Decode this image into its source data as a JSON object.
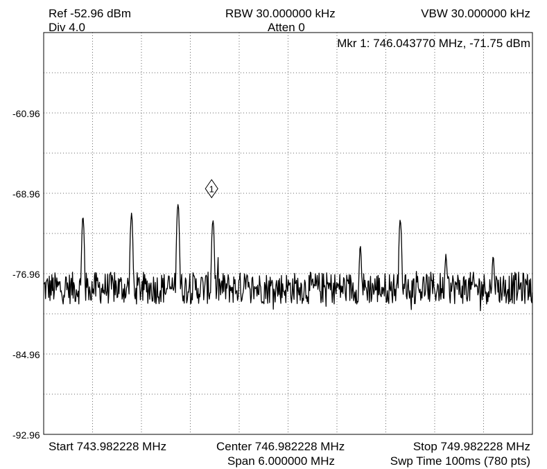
{
  "header": {
    "ref": "Ref -52.96 dBm",
    "div": "Div 4.0",
    "rbw": "RBW 30.000000 kHz",
    "atten": "Atten 0",
    "vbw": "VBW 30.000000 kHz",
    "marker_readout": "Mkr 1: 746.043770 MHz, -71.75 dBm"
  },
  "footer": {
    "start": "Start 743.982228 MHz",
    "center": "Center 746.982228 MHz",
    "stop": "Stop 749.982228 MHz",
    "span": "Span 6.000000 MHz",
    "sweep": "Swp Time 100ms (780 pts)"
  },
  "chart_data": {
    "type": "line",
    "title": "",
    "xlabel": "",
    "ylabel": "",
    "x_unit": "MHz",
    "y_unit": "dBm",
    "xlim": [
      743.982228,
      749.982228
    ],
    "ylim": [
      -92.96,
      -52.96
    ],
    "grid": true,
    "grid_style": "dotted",
    "y_tick_labels": [
      "-60.96",
      "-68.96",
      "-76.96",
      "-84.96",
      "-92.96"
    ],
    "y_tick_values": [
      -60.96,
      -68.96,
      -76.96,
      -84.96,
      -92.96
    ],
    "noise_floor_dbm": -78.4,
    "points": 780,
    "peaks": [
      {
        "x": 744.465,
        "y": -71.4
      },
      {
        "x": 745.06,
        "y": -71.1
      },
      {
        "x": 745.63,
        "y": -70.0
      },
      {
        "x": 746.06,
        "y": -71.6
      },
      {
        "x": 746.45,
        "y": -77.1
      },
      {
        "x": 747.87,
        "y": -74.3
      },
      {
        "x": 748.36,
        "y": -71.6
      },
      {
        "x": 748.92,
        "y": -75.1
      },
      {
        "x": 749.5,
        "y": -75.1
      }
    ],
    "marker": {
      "label": "1",
      "x": 746.04377,
      "y": -71.75,
      "display_y": -68.5
    }
  }
}
